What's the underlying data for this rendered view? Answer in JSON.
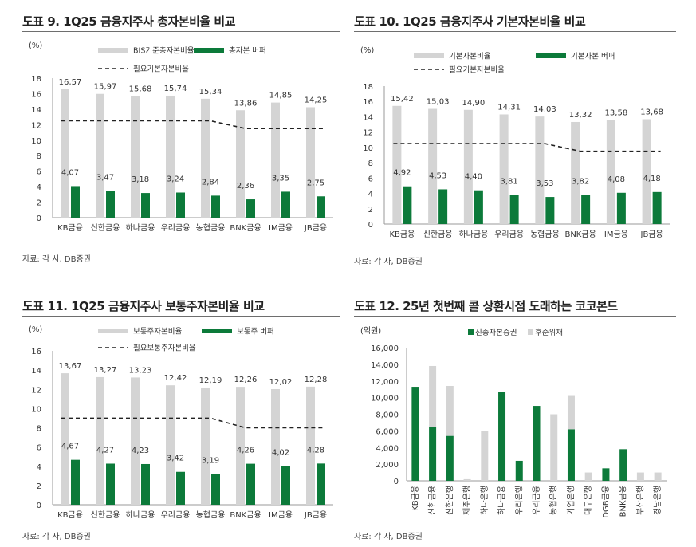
{
  "colors": {
    "bar_gray": "#d4d4d4",
    "bar_green": "#0c7a3a",
    "line_black": "#222222",
    "axis": "#9a9a9a"
  },
  "chart_data": [
    {
      "type": "bar",
      "title": "도표 9. 1Q25 금융지주사 총자본비율 비교",
      "unit": "(%)",
      "source": "자료: 각 사, DB증권",
      "categories": [
        "KB금융",
        "신한금융",
        "하나금융",
        "우리금융",
        "농협금융",
        "BNK금융",
        "IM금융",
        "JB금융"
      ],
      "series": [
        {
          "name": "BIS기준총자본비율",
          "type": "bar",
          "color": "#d4d4d4",
          "values": [
            16.57,
            15.97,
            15.68,
            15.74,
            15.34,
            13.86,
            14.85,
            14.25
          ],
          "labels": [
            "16,57",
            "15,97",
            "15,68",
            "15,74",
            "15,34",
            "13,86",
            "14,85",
            "14,25"
          ]
        },
        {
          "name": "총자본 버퍼",
          "type": "bar",
          "color": "#0c7a3a",
          "values": [
            4.07,
            3.47,
            3.18,
            3.24,
            2.84,
            2.36,
            3.35,
            2.75
          ],
          "labels": [
            "4,07",
            "3,47",
            "3,18",
            "3,24",
            "2,84",
            "2,36",
            "3,35",
            "2,75"
          ]
        },
        {
          "name": "필요기본자본비율",
          "type": "dashed-line",
          "color": "#222222",
          "values": [
            12.5,
            12.5,
            12.5,
            12.5,
            12.5,
            11.5,
            11.5,
            11.5
          ]
        }
      ],
      "ylim": [
        0,
        18
      ],
      "yticks": [
        0,
        2,
        4,
        6,
        8,
        10,
        12,
        14,
        16,
        18
      ]
    },
    {
      "type": "bar",
      "title": "도표 10. 1Q25 금융지주사 기본자본비율 비교",
      "unit": "(%)",
      "source": "자료: 각 사, DB증권",
      "categories": [
        "KB금융",
        "신한금융",
        "하나금융",
        "우리금융",
        "농협금융",
        "BNK금융",
        "IM금융",
        "JB금융"
      ],
      "series": [
        {
          "name": "기본자본비율",
          "type": "bar",
          "color": "#d4d4d4",
          "values": [
            15.42,
            15.03,
            14.9,
            14.31,
            14.03,
            13.32,
            13.58,
            13.68
          ],
          "labels": [
            "15,42",
            "15,03",
            "14,90",
            "14,31",
            "14,03",
            "13,32",
            "13,58",
            "13,68"
          ]
        },
        {
          "name": "기본자본 버퍼",
          "type": "bar",
          "color": "#0c7a3a",
          "values": [
            4.92,
            4.53,
            4.4,
            3.81,
            3.53,
            3.82,
            4.08,
            4.18
          ],
          "labels": [
            "4,92",
            "4,53",
            "4,40",
            "3,81",
            "3,53",
            "3,82",
            "4,08",
            "4,18"
          ]
        },
        {
          "name": "필요기본자본비율",
          "type": "dashed-line",
          "color": "#222222",
          "values": [
            10.5,
            10.5,
            10.5,
            10.5,
            10.5,
            9.5,
            9.5,
            9.5
          ]
        }
      ],
      "ylim": [
        0,
        18
      ],
      "yticks": [
        0,
        2,
        4,
        6,
        8,
        10,
        12,
        14,
        16,
        18
      ]
    },
    {
      "type": "bar",
      "title": "도표 11. 1Q25 금융지주사 보통주자본비율 비교",
      "unit": "(%)",
      "source": "자료: 각 사, DB증권",
      "categories": [
        "KB금융",
        "신한금융",
        "하나금융",
        "우리금융",
        "농협금융",
        "BNK금융",
        "IM금융",
        "JB금융"
      ],
      "series": [
        {
          "name": "보통주자본비율",
          "type": "bar",
          "color": "#d4d4d4",
          "values": [
            13.67,
            13.27,
            13.23,
            12.42,
            12.19,
            12.26,
            12.02,
            12.28
          ],
          "labels": [
            "13,67",
            "13,27",
            "13,23",
            "12,42",
            "12,19",
            "12,26",
            "12,02",
            "12,28"
          ]
        },
        {
          "name": "보통주 버퍼",
          "type": "bar",
          "color": "#0c7a3a",
          "values": [
            4.67,
            4.27,
            4.23,
            3.42,
            3.19,
            4.26,
            4.02,
            4.28
          ],
          "labels": [
            "4,67",
            "4,27",
            "4,23",
            "3,42",
            "3,19",
            "4,26",
            "4,02",
            "4,28"
          ]
        },
        {
          "name": "필요보통주자본비율",
          "type": "dashed-line",
          "color": "#222222",
          "values": [
            9.0,
            9.0,
            9.0,
            9.0,
            9.0,
            8.0,
            8.0,
            8.0
          ]
        }
      ],
      "ylim": [
        0,
        16
      ],
      "yticks": [
        0,
        2,
        4,
        6,
        8,
        10,
        12,
        14,
        16
      ]
    },
    {
      "type": "bar",
      "stacked": true,
      "title": "도표 12. 25년 첫번째 콜 상환시점 도래하는 코코본드",
      "unit": "(억원)",
      "source": "자료: 각 사, DB증권",
      "categories": [
        "KB금융",
        "신한금융",
        "신한은행",
        "제주은행",
        "하나은행",
        "하나금융",
        "우리은행",
        "우리금융",
        "농협은행",
        "기업은행",
        "대구은행",
        "DGB금융",
        "BNK금융",
        "부산은행",
        "경남은행"
      ],
      "series": [
        {
          "name": "신종자본증권",
          "color": "#0c7a3a",
          "values": [
            11300,
            6500,
            5400,
            0,
            0,
            10700,
            2400,
            9000,
            0,
            6200,
            0,
            1500,
            3800,
            0,
            0
          ]
        },
        {
          "name": "후순위채",
          "color": "#d4d4d4",
          "values": [
            0,
            7300,
            6000,
            200,
            6000,
            0,
            0,
            0,
            8000,
            4000,
            1000,
            0,
            0,
            1000,
            1000
          ]
        }
      ],
      "ylim": [
        0,
        16000
      ],
      "yticks": [
        0,
        2000,
        4000,
        6000,
        8000,
        10000,
        12000,
        14000,
        16000
      ],
      "ytick_labels": [
        "0",
        "2,000",
        "4,000",
        "6,000",
        "8,000",
        "10,000",
        "12,000",
        "14,000",
        "16,000"
      ]
    }
  ]
}
